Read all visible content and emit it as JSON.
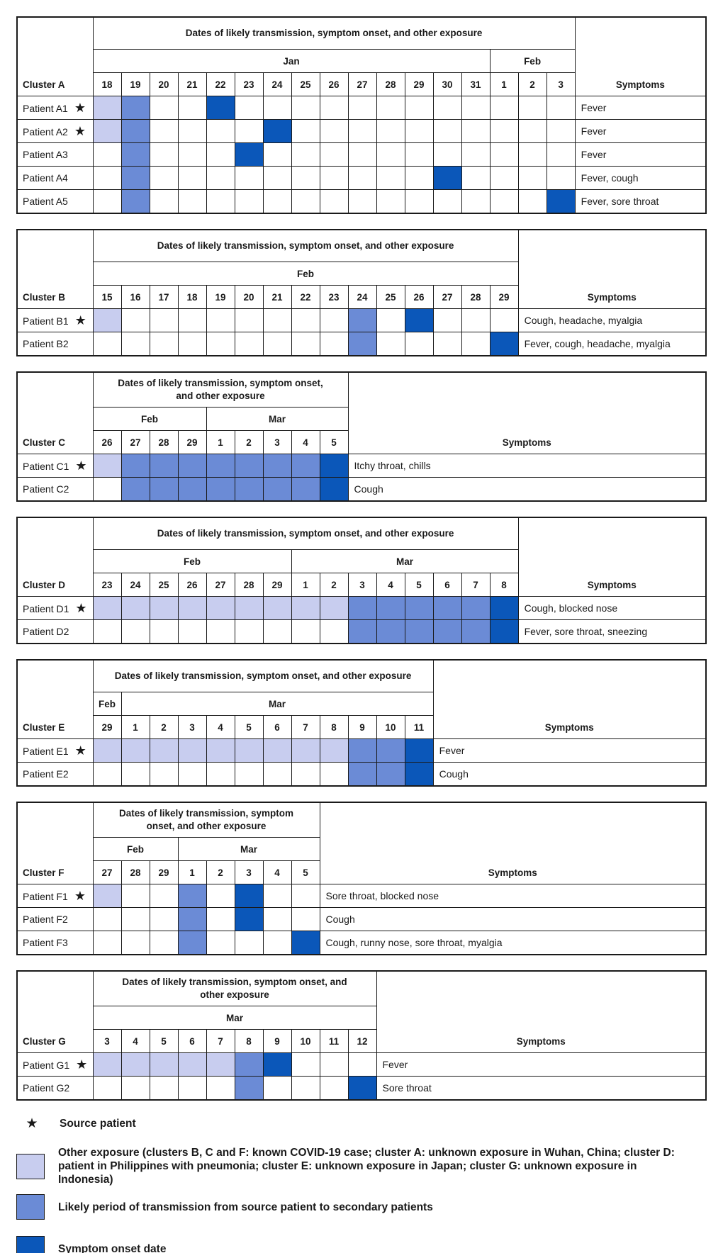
{
  "clusters": [
    {
      "label": "Cluster A",
      "header": "Dates of likely transmission, symptom onset, and other exposure",
      "symptoms_label": "Symptoms",
      "months": [
        {
          "label": "Jan",
          "span": 14
        },
        {
          "label": "Feb",
          "span": 3
        }
      ],
      "dates": [
        18,
        19,
        20,
        21,
        22,
        23,
        24,
        25,
        26,
        27,
        28,
        29,
        30,
        31,
        1,
        2,
        3
      ],
      "rows": [
        {
          "patient": "Patient A1",
          "source": true,
          "cells": [
            1,
            2,
            0,
            0,
            3,
            0,
            0,
            0,
            0,
            0,
            0,
            0,
            0,
            0,
            0,
            0,
            0
          ],
          "symptoms": "Fever"
        },
        {
          "patient": "Patient A2",
          "source": true,
          "cells": [
            1,
            2,
            0,
            0,
            0,
            0,
            3,
            0,
            0,
            0,
            0,
            0,
            0,
            0,
            0,
            0,
            0
          ],
          "symptoms": "Fever"
        },
        {
          "patient": "Patient A3",
          "source": false,
          "cells": [
            0,
            2,
            0,
            0,
            0,
            3,
            0,
            0,
            0,
            0,
            0,
            0,
            0,
            0,
            0,
            0,
            0
          ],
          "symptoms": "Fever"
        },
        {
          "patient": "Patient A4",
          "source": false,
          "cells": [
            0,
            2,
            0,
            0,
            0,
            0,
            0,
            0,
            0,
            0,
            0,
            0,
            3,
            0,
            0,
            0,
            0
          ],
          "symptoms": "Fever, cough"
        },
        {
          "patient": "Patient A5",
          "source": false,
          "cells": [
            0,
            2,
            0,
            0,
            0,
            0,
            0,
            0,
            0,
            0,
            0,
            0,
            0,
            0,
            0,
            0,
            3
          ],
          "symptoms": "Fever, sore throat"
        }
      ]
    },
    {
      "label": "Cluster B",
      "header": "Dates of likely transmission, symptom onset, and other exposure",
      "symptoms_label": "Symptoms",
      "months": [
        {
          "label": "Feb",
          "span": 15
        }
      ],
      "dates": [
        15,
        16,
        17,
        18,
        19,
        20,
        21,
        22,
        23,
        24,
        25,
        26,
        27,
        28,
        29
      ],
      "rows": [
        {
          "patient": "Patient B1",
          "source": true,
          "cells": [
            1,
            0,
            0,
            0,
            0,
            0,
            0,
            0,
            0,
            2,
            0,
            3,
            0,
            0,
            0
          ],
          "symptoms": "Cough, headache, myalgia"
        },
        {
          "patient": "Patient B2",
          "source": false,
          "cells": [
            0,
            0,
            0,
            0,
            0,
            0,
            0,
            0,
            0,
            2,
            0,
            0,
            0,
            0,
            3
          ],
          "symptoms": "Fever, cough, headache, myalgia"
        }
      ]
    },
    {
      "label": "Cluster C",
      "header": "Dates of likely transmission, symptom onset, and other exposure",
      "symptoms_label": "Symptoms",
      "months": [
        {
          "label": "Feb",
          "span": 4
        },
        {
          "label": "Mar",
          "span": 5
        }
      ],
      "dates": [
        26,
        27,
        28,
        29,
        1,
        2,
        3,
        4,
        5
      ],
      "rows": [
        {
          "patient": "Patient C1",
          "source": true,
          "cells": [
            1,
            2,
            2,
            2,
            2,
            2,
            2,
            2,
            3
          ],
          "symptoms": "Itchy throat, chills"
        },
        {
          "patient": "Patient C2",
          "source": false,
          "cells": [
            0,
            2,
            2,
            2,
            2,
            2,
            2,
            2,
            3
          ],
          "symptoms": "Cough"
        }
      ]
    },
    {
      "label": "Cluster D",
      "header": "Dates of likely transmission, symptom onset, and other exposure",
      "symptoms_label": "Symptoms",
      "months": [
        {
          "label": "Feb",
          "span": 7
        },
        {
          "label": "Mar",
          "span": 8
        }
      ],
      "dates": [
        23,
        24,
        25,
        26,
        27,
        28,
        29,
        1,
        2,
        3,
        4,
        5,
        6,
        7,
        8
      ],
      "rows": [
        {
          "patient": "Patient D1",
          "source": true,
          "cells": [
            1,
            1,
            1,
            1,
            1,
            1,
            1,
            1,
            1,
            2,
            2,
            2,
            2,
            2,
            3
          ],
          "symptoms": "Cough, blocked nose"
        },
        {
          "patient": "Patient D2",
          "source": false,
          "cells": [
            0,
            0,
            0,
            0,
            0,
            0,
            0,
            0,
            0,
            2,
            2,
            2,
            2,
            2,
            3
          ],
          "symptoms": "Fever, sore throat, sneezing"
        }
      ]
    },
    {
      "label": "Cluster E",
      "header": "Dates of likely transmission, symptom onset, and other exposure",
      "symptoms_label": "Symptoms",
      "months": [
        {
          "label": "Feb",
          "span": 1
        },
        {
          "label": "Mar",
          "span": 11
        }
      ],
      "dates": [
        29,
        1,
        2,
        3,
        4,
        5,
        6,
        7,
        8,
        9,
        10,
        11
      ],
      "rows": [
        {
          "patient": "Patient E1",
          "source": true,
          "cells": [
            1,
            1,
            1,
            1,
            1,
            1,
            1,
            1,
            1,
            2,
            2,
            3
          ],
          "symptoms": "Fever"
        },
        {
          "patient": "Patient E2",
          "source": false,
          "cells": [
            0,
            0,
            0,
            0,
            0,
            0,
            0,
            0,
            0,
            2,
            2,
            3
          ],
          "symptoms": "Cough"
        }
      ]
    },
    {
      "label": "Cluster F",
      "header": "Dates of likely transmission, symptom onset, and other exposure",
      "symptoms_label": "Symptoms",
      "months": [
        {
          "label": "Feb",
          "span": 3
        },
        {
          "label": "Mar",
          "span": 5
        }
      ],
      "dates": [
        27,
        28,
        29,
        1,
        2,
        3,
        4,
        5
      ],
      "rows": [
        {
          "patient": "Patient F1",
          "source": true,
          "cells": [
            1,
            0,
            0,
            2,
            0,
            3,
            0,
            0
          ],
          "symptoms": "Sore throat, blocked nose"
        },
        {
          "patient": "Patient F2",
          "source": false,
          "cells": [
            0,
            0,
            0,
            2,
            0,
            3,
            0,
            0
          ],
          "symptoms": "Cough"
        },
        {
          "patient": "Patient F3",
          "source": false,
          "cells": [
            0,
            0,
            0,
            2,
            0,
            0,
            0,
            3
          ],
          "symptoms": "Cough, runny nose, sore throat, myalgia"
        }
      ]
    },
    {
      "label": "Cluster G",
      "header": "Dates of likely transmission, symptom onset, and other exposure",
      "symptoms_label": "Symptoms",
      "months": [
        {
          "label": "Mar",
          "span": 10
        }
      ],
      "dates": [
        3,
        4,
        5,
        6,
        7,
        8,
        9,
        10,
        11,
        12
      ],
      "rows": [
        {
          "patient": "Patient G1",
          "source": true,
          "cells": [
            1,
            1,
            1,
            1,
            1,
            2,
            3,
            0,
            0,
            0
          ],
          "symptoms": "Fever"
        },
        {
          "patient": "Patient G2",
          "source": false,
          "cells": [
            0,
            0,
            0,
            0,
            0,
            2,
            0,
            0,
            0,
            3
          ],
          "symptoms": "Sore throat"
        }
      ]
    }
  ],
  "legend": {
    "source_label": "Source patient",
    "items": [
      {
        "label": "Other exposure (clusters B, C and F: known COVID-19 case; cluster A: unknown exposure in Wuhan, China; cluster D: patient in Philippines with pneumonia; cluster E: unknown exposure in Japan; cluster G: unknown exposure in Indonesia)",
        "color": "#c8cdef"
      },
      {
        "label": "Likely period of transmission from source patient to secondary patients",
        "color": "#6b8bd6"
      },
      {
        "label": "Symptom onset date",
        "color": "#0b57b9"
      }
    ]
  }
}
